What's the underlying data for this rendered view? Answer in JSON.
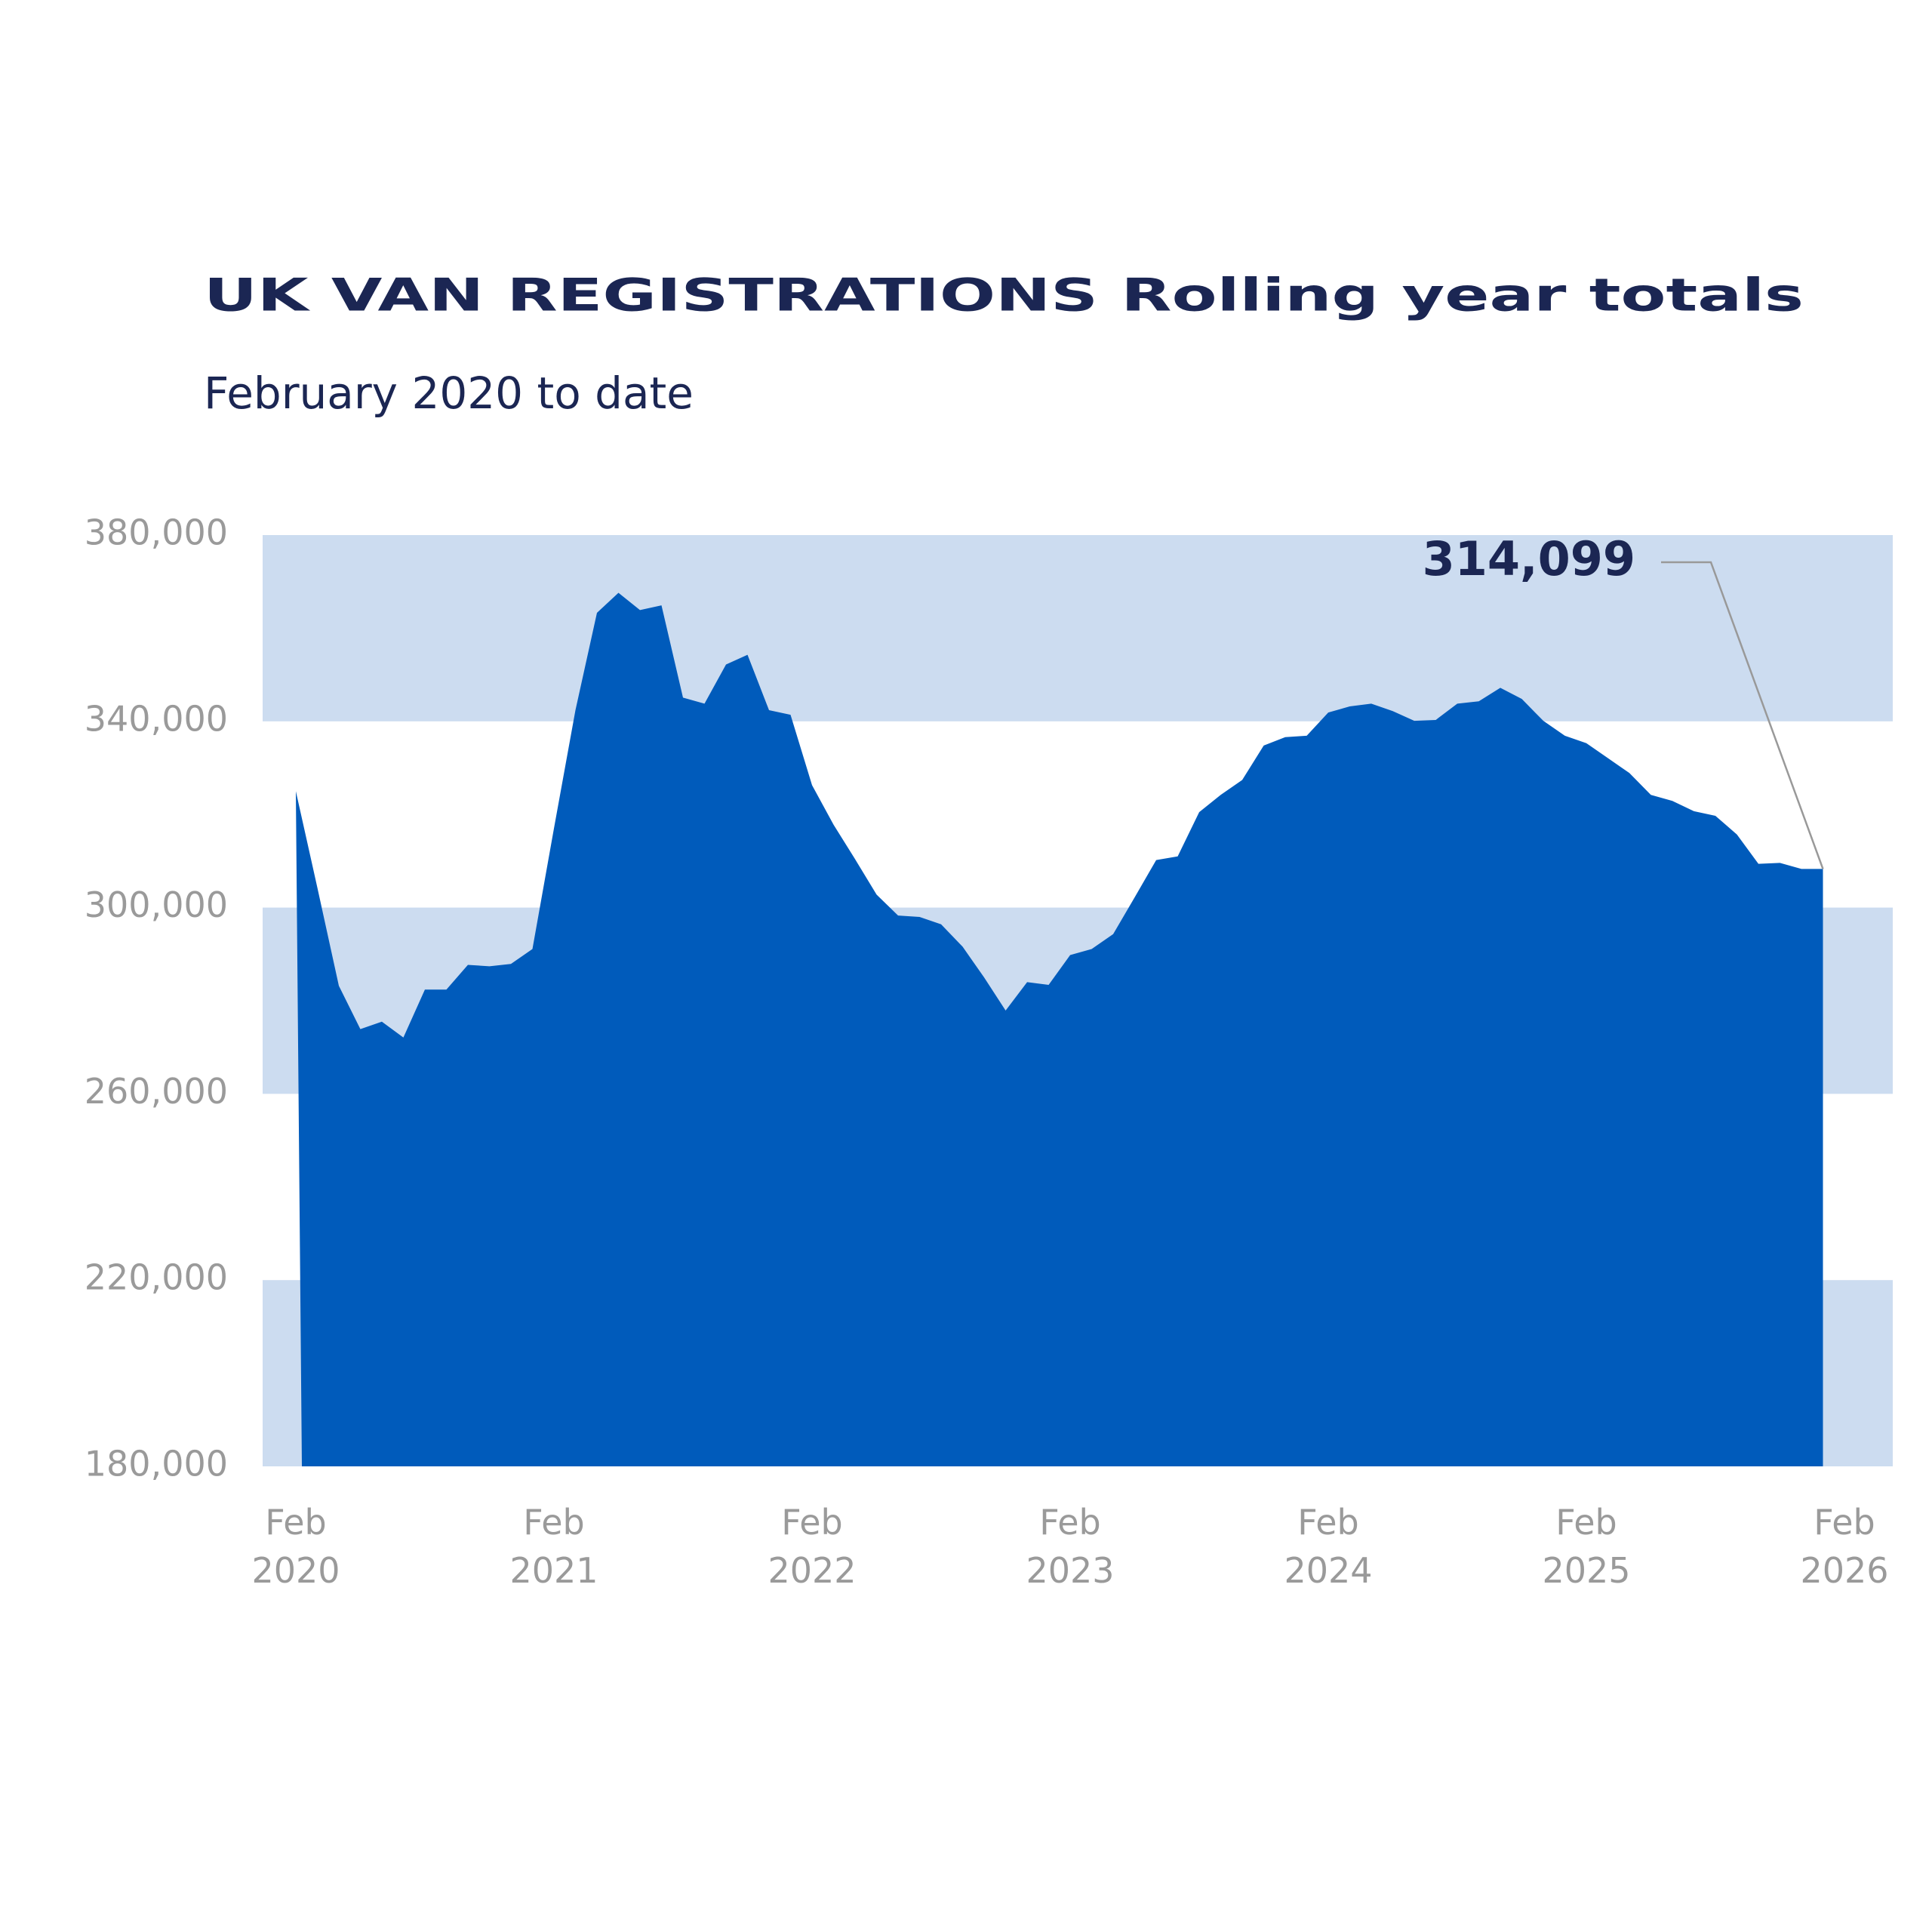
{
  "chart_data": {
    "type": "area",
    "title": "UK VAN REGISTRATIONS Rolling year totals",
    "subtitle": "February 2020 to date",
    "categories": [
      "Feb 2020",
      null,
      null,
      null,
      null,
      null,
      null,
      null,
      null,
      null,
      null,
      null,
      "Feb 2021",
      null,
      null,
      null,
      null,
      null,
      null,
      null,
      null,
      null,
      null,
      null,
      "Feb 2022",
      null,
      null,
      null,
      null,
      null,
      null,
      null,
      null,
      null,
      null,
      null,
      "Feb 2023",
      null,
      null,
      null,
      null,
      null,
      null,
      null,
      null,
      null,
      null,
      null,
      "Feb 2024",
      null,
      null,
      null,
      null,
      null,
      null,
      null,
      null,
      null,
      null,
      null,
      "Feb 2025",
      null,
      null,
      null,
      null,
      null,
      null,
      null,
      null,
      null,
      null,
      null,
      "Feb 2026"
    ],
    "values": [
      325000,
      304300,
      283200,
      273900,
      275500,
      272100,
      282400,
      282400,
      287700,
      287400,
      287900,
      291100,
      317000,
      342400,
      363300,
      367600,
      363900,
      364900,
      345100,
      343800,
      352200,
      354300,
      342400,
      341400,
      326300,
      317800,
      310400,
      302800,
      298300,
      298000,
      296400,
      291600,
      285000,
      277900,
      284000,
      283400,
      289800,
      291100,
      294300,
      302200,
      310200,
      311000,
      320500,
      324200,
      327400,
      334800,
      336600,
      336900,
      341900,
      343200,
      343800,
      342200,
      340100,
      340300,
      343800,
      344300,
      347200,
      344800,
      340100,
      336900,
      335300,
      332100,
      328900,
      324200,
      322900,
      320700,
      319700,
      315700,
      309400,
      309600,
      308300,
      308300,
      null
    ],
    "color": "#005bbb",
    "ylim": [
      180000,
      380000
    ],
    "yticks": [
      {
        "value": 180000,
        "label": "180,000"
      },
      {
        "value": 220000,
        "label": "220,000"
      },
      {
        "value": 260000,
        "label": "260,000"
      },
      {
        "value": 300000,
        "label": "300,000"
      },
      {
        "value": 340000,
        "label": "340,000"
      },
      {
        "value": 380000,
        "label": "380,000"
      }
    ],
    "grid_bands": true,
    "band_color": "#ccdcf0",
    "annotation": {
      "text": "314,099"
    }
  }
}
